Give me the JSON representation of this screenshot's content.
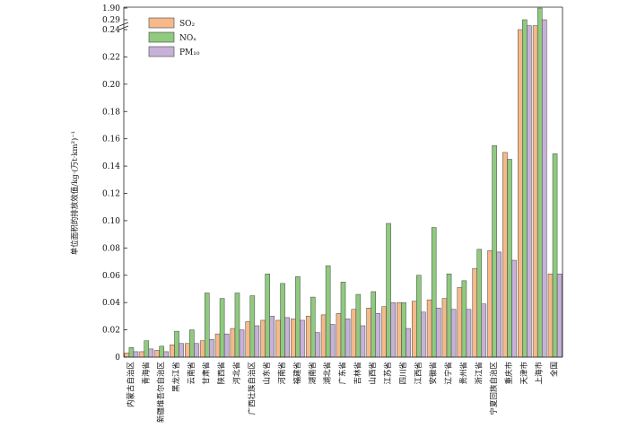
{
  "chart_data": {
    "type": "bar",
    "ylabel": "单位面积的排放效值/kg·(万t·km²)⁻¹",
    "legend_position": "top-left",
    "grid": false,
    "ylim": [
      0,
      0.24
    ],
    "y_break": {
      "after": 0.24,
      "upper_ticks": [
        0.29,
        1.9
      ]
    },
    "yticks": [
      "0",
      "0.02",
      "0.04",
      "0.06",
      "0.08",
      "0.10",
      "0.12",
      "0.14",
      "0.16",
      "0.18",
      "0.20",
      "0.22",
      "0.24",
      "0.29",
      "1.90"
    ],
    "categories": [
      "内蒙古自治区",
      "青海省",
      "新疆维吾尔自治区",
      "黑龙江省",
      "云南省",
      "甘肃省",
      "陕西省",
      "河北省",
      "广西壮族自治区",
      "山东省",
      "河南省",
      "福建省",
      "湖南省",
      "湖北省",
      "广东省",
      "吉林省",
      "山西省",
      "江苏省",
      "四川省",
      "江西省",
      "安徽省",
      "辽宁省",
      "贵州省",
      "浙江省",
      "宁夏回族自治区",
      "重庆市",
      "天津市",
      "上海市",
      "全国"
    ],
    "series": [
      {
        "name": "SO₂",
        "color": "#f5b98a",
        "values": [
          0.003,
          0.004,
          0.005,
          0.009,
          0.01,
          0.012,
          0.017,
          0.021,
          0.026,
          0.027,
          0.027,
          0.028,
          0.03,
          0.031,
          0.032,
          0.035,
          0.036,
          0.037,
          0.04,
          0.041,
          0.042,
          0.043,
          0.051,
          0.065,
          0.078,
          0.15,
          0.24,
          0.26,
          0.061
        ]
      },
      {
        "name": "NOₓ",
        "color": "#8fca7e",
        "values": [
          0.007,
          0.012,
          0.008,
          0.019,
          0.02,
          0.047,
          0.043,
          0.047,
          0.045,
          0.061,
          0.054,
          0.059,
          0.044,
          0.067,
          0.055,
          0.046,
          0.048,
          0.098,
          0.04,
          0.06,
          0.095,
          0.061,
          0.056,
          0.079,
          0.155,
          0.145,
          0.29,
          1.9,
          0.149
        ]
      },
      {
        "name": "PM₁₀",
        "color": "#c7b1d9",
        "values": [
          0.004,
          0.006,
          0.004,
          0.01,
          0.01,
          0.013,
          0.017,
          0.02,
          0.023,
          0.03,
          0.029,
          0.027,
          0.018,
          0.024,
          0.028,
          0.023,
          0.032,
          0.04,
          0.021,
          0.033,
          0.036,
          0.035,
          0.035,
          0.039,
          0.077,
          0.071,
          0.26,
          0.29,
          0.061
        ]
      }
    ]
  }
}
